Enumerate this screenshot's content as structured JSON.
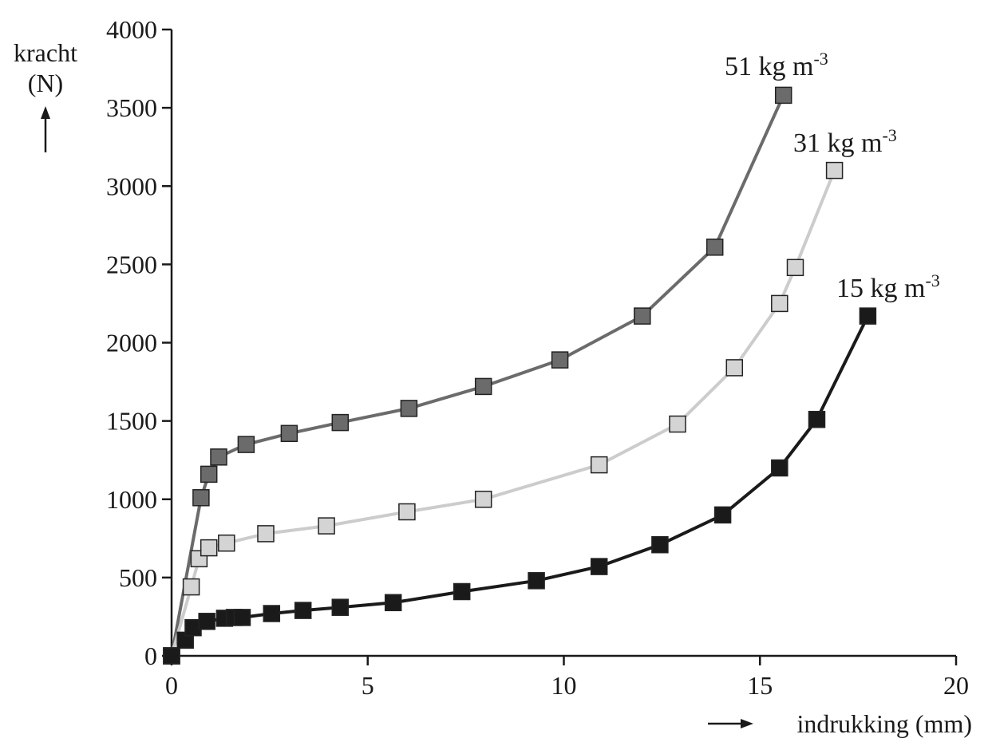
{
  "chart_data": {
    "type": "line",
    "title": "",
    "xlabel": "indrukking (mm)",
    "ylabel_line1": "kracht",
    "ylabel_line2": "(N)",
    "xlim": [
      0,
      20
    ],
    "ylim": [
      0,
      4000
    ],
    "x_ticks": [
      0,
      5,
      10,
      15,
      20
    ],
    "y_ticks": [
      0,
      500,
      1000,
      1500,
      2000,
      2500,
      3000,
      3500,
      4000
    ],
    "grid": false,
    "legend": "inline labels at line ends",
    "series": [
      {
        "name": "51 kgm-3",
        "label_main": "51 kg m",
        "label_sup": "-3",
        "line_color": "#6b6b6b",
        "marker_color": "#6b6b6b",
        "x": [
          0,
          0.75,
          0.95,
          1.2,
          1.9,
          3.0,
          4.3,
          6.05,
          7.95,
          9.9,
          12.0,
          13.85,
          15.6
        ],
        "y": [
          0,
          1010,
          1160,
          1270,
          1350,
          1420,
          1490,
          1580,
          1720,
          1890,
          2170,
          2610,
          3580
        ]
      },
      {
        "name": "31 kgm-3",
        "label_main": "31 kg m",
        "label_sup": "-3",
        "line_color": "#cccccc",
        "marker_color": "#d4d4d4",
        "x": [
          0,
          0.5,
          0.7,
          0.95,
          1.4,
          2.4,
          3.95,
          6.0,
          7.95,
          10.9,
          12.9,
          14.35,
          15.5,
          15.9,
          16.9
        ],
        "y": [
          0,
          440,
          620,
          690,
          720,
          780,
          830,
          920,
          1000,
          1220,
          1480,
          1840,
          2250,
          2480,
          3100
        ]
      },
      {
        "name": "15 kgm-3",
        "label_main": "15 kg m",
        "label_sup": "-3",
        "line_color": "#1a1a1a",
        "marker_color": "#1a1a1a",
        "x": [
          0,
          0.35,
          0.55,
          0.9,
          1.35,
          1.6,
          1.8,
          2.55,
          3.35,
          4.3,
          5.65,
          7.4,
          9.3,
          10.9,
          12.45,
          14.05,
          15.5,
          16.45,
          17.75
        ],
        "y": [
          0,
          100,
          180,
          220,
          240,
          245,
          245,
          270,
          290,
          310,
          340,
          410,
          480,
          570,
          710,
          900,
          1200,
          1510,
          2170
        ]
      }
    ]
  }
}
